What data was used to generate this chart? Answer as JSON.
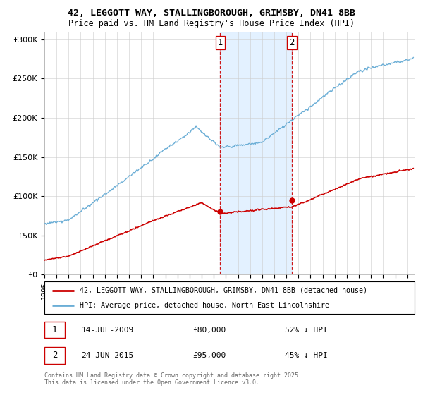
{
  "title1": "42, LEGGOTT WAY, STALLINGBOROUGH, GRIMSBY, DN41 8BB",
  "title2": "Price paid vs. HM Land Registry's House Price Index (HPI)",
  "legend_line1": "42, LEGGOTT WAY, STALLINGBOROUGH, GRIMSBY, DN41 8BB (detached house)",
  "legend_line2": "HPI: Average price, detached house, North East Lincolnshire",
  "sale1_date": "14-JUL-2009",
  "sale1_price": 80000,
  "sale1_label": "52% ↓ HPI",
  "sale2_date": "24-JUN-2015",
  "sale2_price": 95000,
  "sale2_label": "45% ↓ HPI",
  "footnote": "Contains HM Land Registry data © Crown copyright and database right 2025.\nThis data is licensed under the Open Government Licence v3.0.",
  "hpi_color": "#6baed6",
  "price_color": "#cc0000",
  "sale_marker_color": "#cc0000",
  "vline_color": "#cc0000",
  "shade_color": "#ddeeff",
  "background_color": "#ffffff",
  "ylim": [
    0,
    310000
  ],
  "yticks": [
    0,
    50000,
    100000,
    150000,
    200000,
    250000,
    300000
  ],
  "ytick_labels": [
    "£0",
    "£50K",
    "£100K",
    "£150K",
    "£200K",
    "£250K",
    "£300K"
  ],
  "xstart_year": 1995,
  "xend_year": 2025,
  "sale1_year": 2009.54,
  "sale2_year": 2015.46
}
